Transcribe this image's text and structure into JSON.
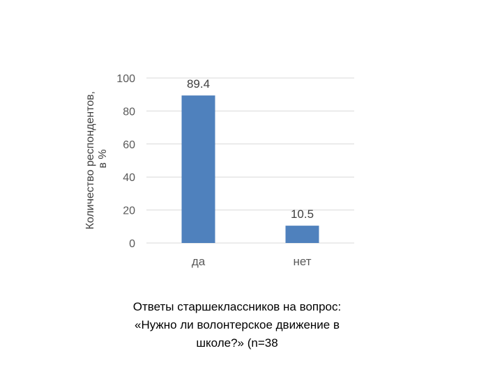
{
  "chart_data": {
    "type": "bar",
    "categories": [
      "да",
      "нет"
    ],
    "values": [
      89.4,
      10.5
    ],
    "data_labels": [
      "89.4",
      "10.5"
    ],
    "ylabel_lines": [
      "Количество респондентов,",
      "в %"
    ],
    "xlabel": "",
    "ylim": [
      0,
      100
    ],
    "yticks": [
      0,
      20,
      40,
      60,
      80,
      100
    ],
    "grid": true,
    "legend": "none",
    "bar_color": "#4f81bd"
  },
  "caption": "Ответы старшеклассников на вопрос:\n«Нужно ли волонтерское движение в\nшколе?» (n=38"
}
